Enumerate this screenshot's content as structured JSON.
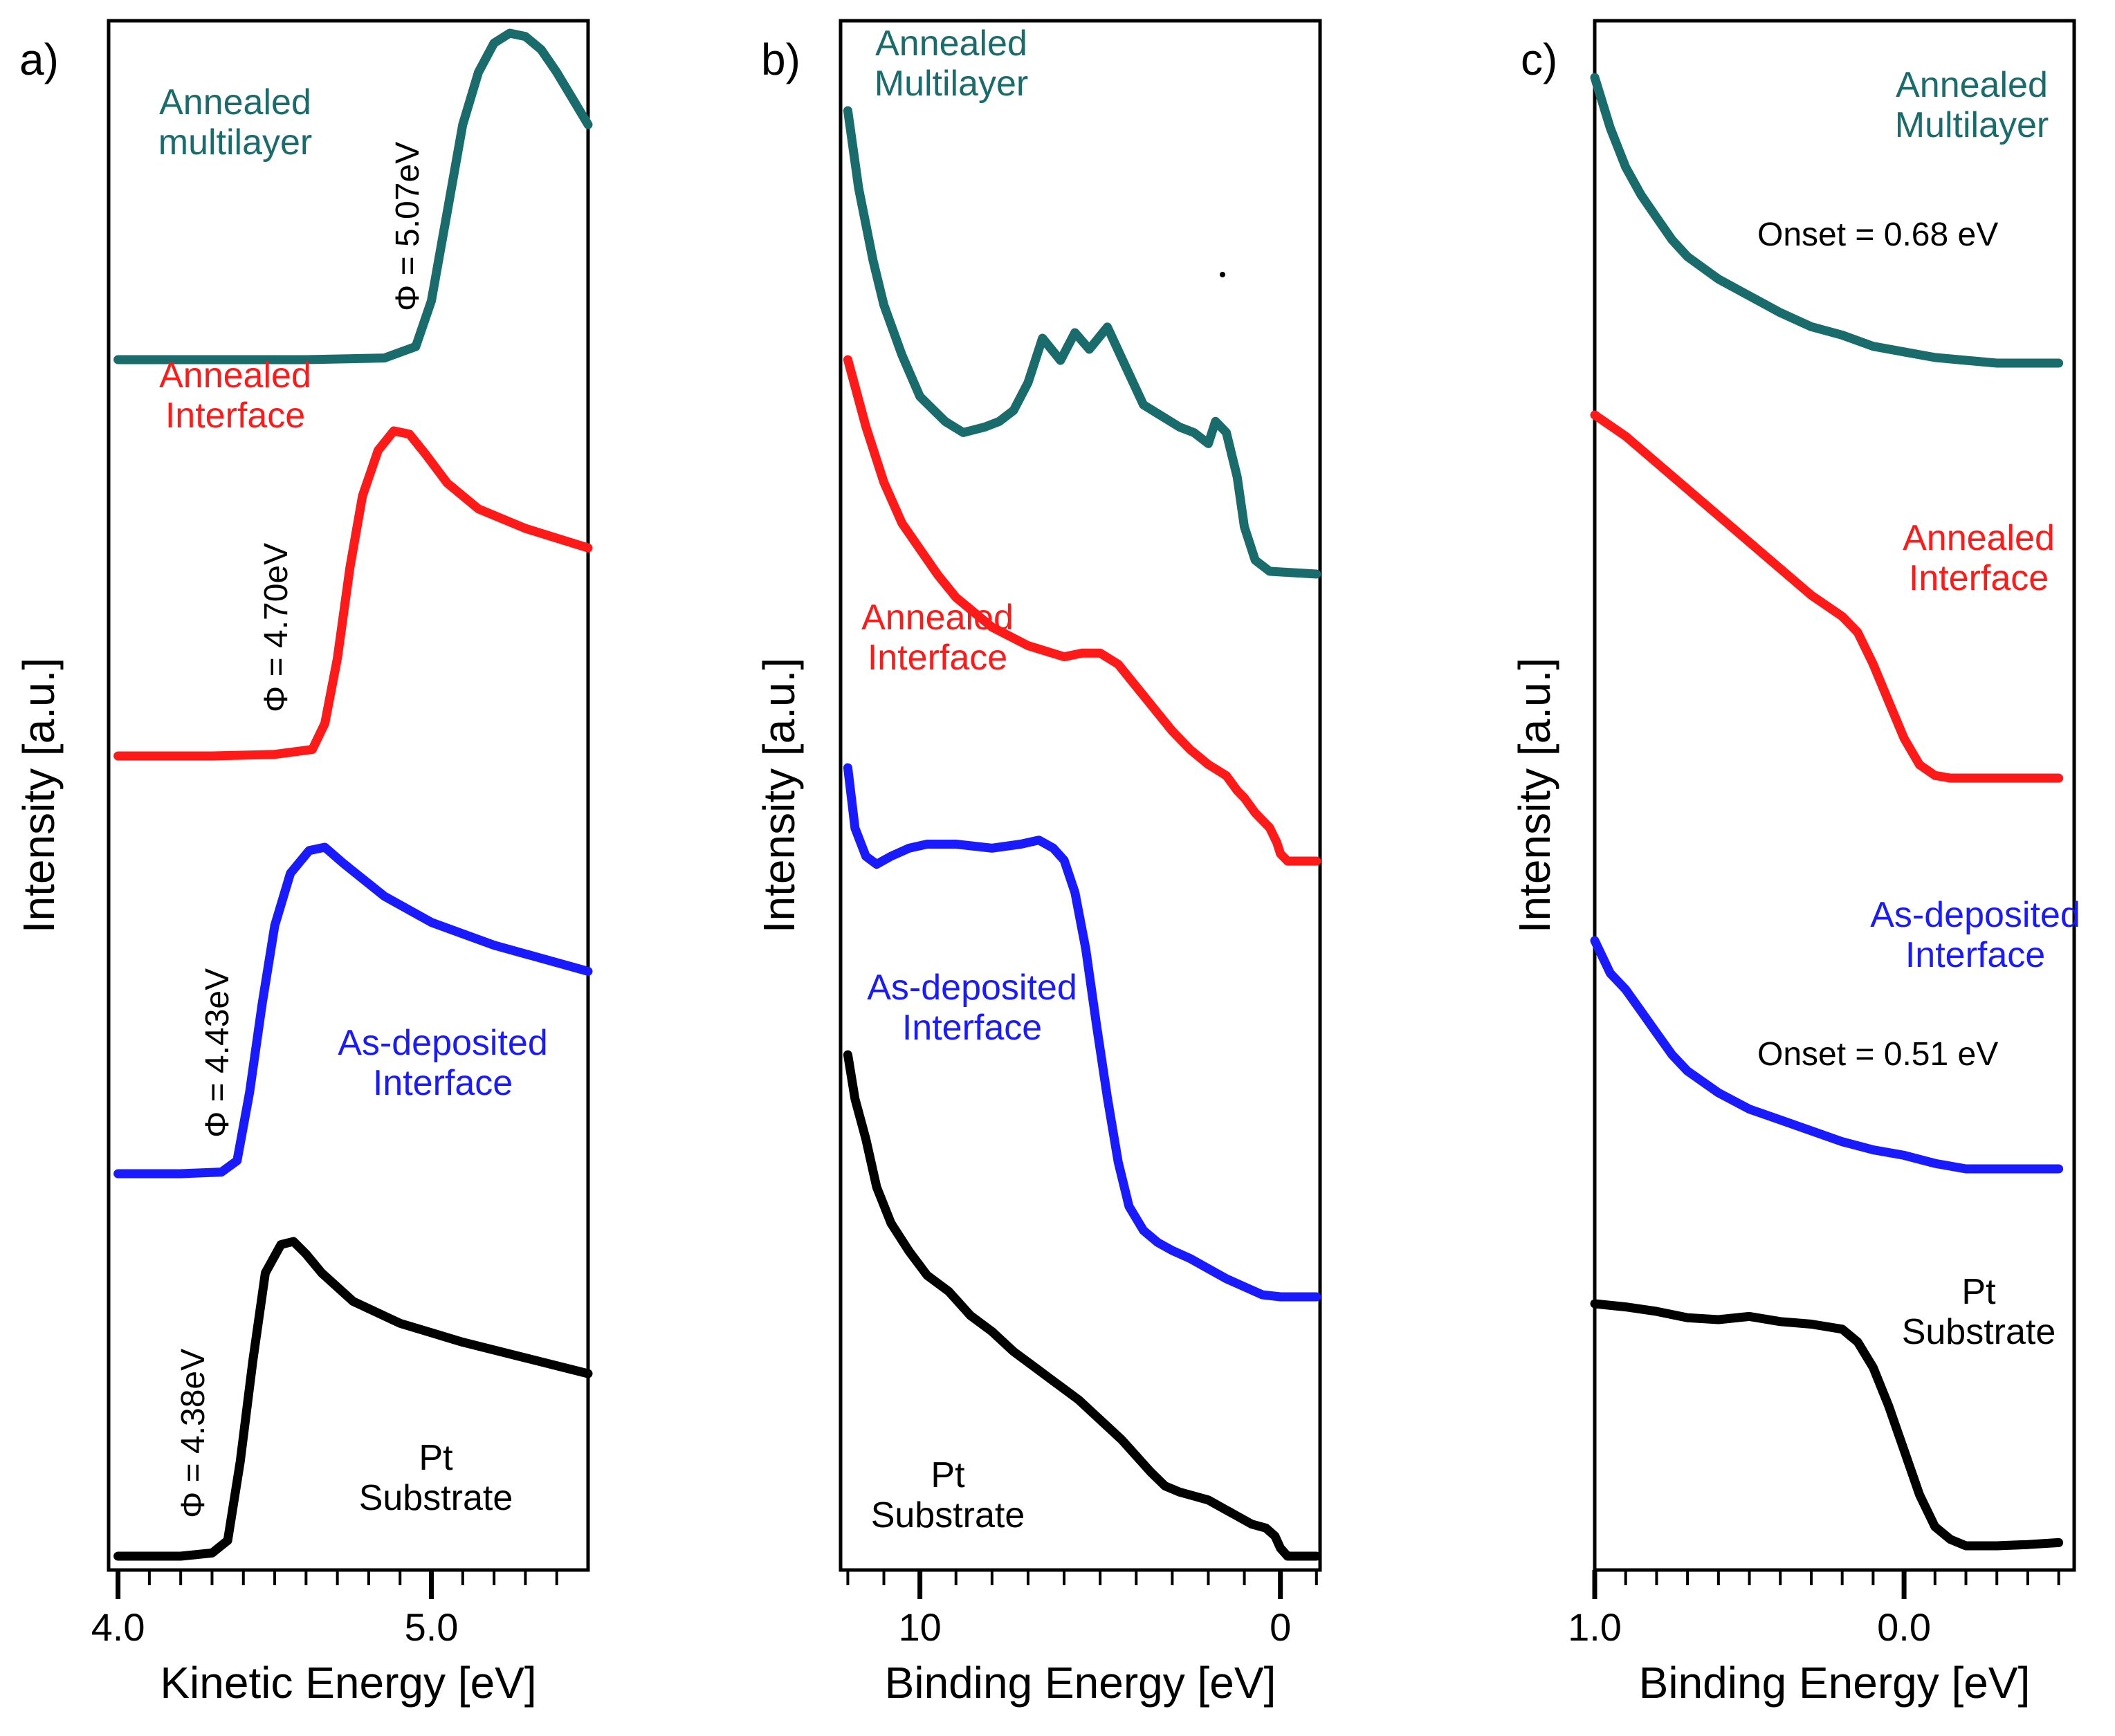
{
  "colors": {
    "teal": "#1a6b6b",
    "red": "#ff1a1a",
    "blue": "#1a1aff",
    "black": "#000000"
  },
  "chart_data": [
    {
      "type": "line",
      "panel_label": "a)",
      "xlabel": "Kinetic Energy [eV]",
      "ylabel": "Intensity [a.u.]",
      "xlim": [
        3.97,
        5.5
      ],
      "xticks": [
        {
          "value": 4.0,
          "label": "4.0"
        },
        {
          "value": 5.0,
          "label": "5.0"
        }
      ],
      "minor_ticks": [
        4.1,
        4.2,
        4.3,
        4.4,
        4.5,
        4.6,
        4.7,
        4.8,
        4.9,
        5.1,
        5.2,
        5.3,
        5.4
      ],
      "series": [
        {
          "name": "Annealed multilayer",
          "color": "teal",
          "offset": 3,
          "x": [
            4.0,
            4.3,
            4.6,
            4.85,
            4.95,
            5.0,
            5.05,
            5.1,
            5.15,
            5.2,
            5.25,
            5.3,
            5.35,
            5.4,
            5.45,
            5.5
          ],
          "y": [
            0,
            0,
            0,
            0.005,
            0.04,
            0.18,
            0.45,
            0.72,
            0.88,
            0.97,
            1.0,
            0.99,
            0.95,
            0.88,
            0.8,
            0.72
          ]
        },
        {
          "name": "Annealed Interface",
          "color": "red",
          "offset": 2,
          "x": [
            4.0,
            4.3,
            4.5,
            4.62,
            4.66,
            4.7,
            4.74,
            4.78,
            4.83,
            4.88,
            4.93,
            4.98,
            5.05,
            5.15,
            5.3,
            5.5
          ],
          "y": [
            0,
            0,
            0.005,
            0.02,
            0.1,
            0.3,
            0.58,
            0.8,
            0.94,
            1.0,
            0.99,
            0.93,
            0.84,
            0.76,
            0.7,
            0.64
          ]
        },
        {
          "name": "As-deposited Interface",
          "color": "blue",
          "offset": 1,
          "x": [
            4.0,
            4.2,
            4.33,
            4.38,
            4.42,
            4.46,
            4.5,
            4.55,
            4.61,
            4.66,
            4.72,
            4.85,
            5.0,
            5.2,
            5.35,
            5.5
          ],
          "y": [
            0,
            0,
            0.005,
            0.04,
            0.25,
            0.52,
            0.76,
            0.92,
            0.99,
            1.0,
            0.95,
            0.85,
            0.77,
            0.7,
            0.66,
            0.62
          ]
        },
        {
          "name": "Pt Substrate",
          "color": "black",
          "offset": 0,
          "x": [
            4.0,
            4.2,
            4.3,
            4.35,
            4.39,
            4.43,
            4.47,
            4.52,
            4.56,
            4.6,
            4.65,
            4.75,
            4.9,
            5.1,
            5.3,
            5.5
          ],
          "y": [
            0,
            0,
            0.01,
            0.05,
            0.3,
            0.62,
            0.9,
            0.99,
            1.0,
            0.96,
            0.9,
            0.81,
            0.74,
            0.68,
            0.63,
            0.58
          ]
        }
      ],
      "annotations": [
        {
          "text": "Φ = 5.07eV",
          "color": "black",
          "rotated": true
        },
        {
          "text": "Φ = 4.70eV",
          "color": "black",
          "rotated": true
        },
        {
          "text": "Φ = 4.43eV",
          "color": "black",
          "rotated": true
        },
        {
          "text": "Φ = 4.38eV",
          "color": "black",
          "rotated": true
        }
      ],
      "labels": [
        {
          "lines": [
            "Annealed",
            "multilayer"
          ],
          "color": "teal"
        },
        {
          "lines": [
            "Annealed",
            "Interface"
          ],
          "color": "red"
        },
        {
          "lines": [
            "As-deposited",
            "Interface"
          ],
          "color": "blue"
        },
        {
          "lines": [
            "Pt",
            "Substrate"
          ],
          "color": "black"
        }
      ]
    },
    {
      "type": "line",
      "panel_label": "b)",
      "xlabel": "Binding Energy [eV]",
      "ylabel": "Intensity [a.u.]",
      "xlim": [
        12.2,
        -1.1
      ],
      "xticks": [
        {
          "value": 10,
          "label": "10"
        },
        {
          "value": 0,
          "label": "0"
        }
      ],
      "minor_ticks": [
        12,
        11,
        9,
        8,
        7,
        6,
        5,
        4,
        3,
        2,
        1,
        -1
      ],
      "series": [
        {
          "name": "Annealed Multilayer",
          "color": "teal",
          "x": [
            12,
            11.7,
            11.3,
            11,
            10.5,
            10,
            9.3,
            8.8,
            8.2,
            7.8,
            7.4,
            7.0,
            6.6,
            6.1,
            5.7,
            5.3,
            4.8,
            4.3,
            3.8,
            3.3,
            2.8,
            2.4,
            2.0,
            1.8,
            1.5,
            1.2,
            1.0,
            0.7,
            0.3,
            -1.0
          ],
          "y": [
            1590,
            1730,
            1860,
            1940,
            2030,
            2105,
            2150,
            2170,
            2160,
            2150,
            2130,
            2080,
            2000,
            2040,
            1990,
            2020,
            1980,
            2050,
            2120,
            2140,
            2160,
            2170,
            2190,
            2150,
            2170,
            2250,
            2340,
            2400,
            2420,
            2425
          ]
        },
        {
          "name": "Annealed Interface",
          "color": "red",
          "x": [
            12,
            11.5,
            11,
            10.5,
            10,
            9.5,
            9,
            8,
            7,
            6,
            5.5,
            5,
            4.5,
            4,
            3.5,
            3,
            2.5,
            2.0,
            1.5,
            1.2,
            1.0,
            0.7,
            0.3,
            0.1,
            0,
            -0.2,
            -1.0
          ],
          "y": [
            2060,
            2240,
            2390,
            2500,
            2570,
            2640,
            2700,
            2780,
            2830,
            2860,
            2850,
            2850,
            2880,
            2940,
            3000,
            3060,
            3110,
            3150,
            3180,
            3220,
            3240,
            3280,
            3320,
            3360,
            3390,
            3410,
            3410
          ]
        },
        {
          "name": "As-deposited Interface",
          "color": "blue",
          "x": [
            12,
            11.8,
            11.5,
            11.2,
            10.8,
            10.3,
            9.8,
            9.0,
            8.0,
            7.2,
            6.7,
            6.3,
            6.0,
            5.7,
            5.4,
            5.1,
            4.8,
            4.5,
            4.2,
            3.8,
            3.4,
            3.0,
            2.5,
            2.0,
            1.5,
            1.0,
            0.5,
            0,
            -1.0
          ],
          "y": [
            1500,
            1650,
            1720,
            1740,
            1720,
            1700,
            1690,
            1690,
            1700,
            1690,
            1680,
            1700,
            1730,
            1810,
            1950,
            2140,
            2320,
            2480,
            2590,
            2650,
            2680,
            2700,
            2720,
            2745,
            2770,
            2790,
            2810,
            2815,
            2815
          ]
        },
        {
          "name": "Pt Substrate",
          "color": "black",
          "x": [
            12,
            11.8,
            11.5,
            11.2,
            10.8,
            10.3,
            9.8,
            9.2,
            8.6,
            8,
            7.4,
            6.8,
            6.2,
            5.6,
            5.0,
            4.4,
            4.0,
            3.6,
            3.2,
            2.8,
            2.4,
            2.0,
            1.6,
            1.2,
            0.8,
            0.4,
            0.15,
            0,
            -0.2,
            -1.0
          ],
          "y": [
            1590,
            1700,
            1800,
            1920,
            2010,
            2080,
            2140,
            2180,
            2240,
            2280,
            2330,
            2370,
            2410,
            2450,
            2500,
            2550,
            2590,
            2630,
            2665,
            2680,
            2690,
            2700,
            2720,
            2740,
            2760,
            2770,
            2790,
            2820,
            2840,
            2840
          ]
        }
      ],
      "labels": [
        {
          "lines": [
            "Annealed",
            "Multilayer"
          ],
          "color": "teal"
        },
        {
          "lines": [
            "Annealed",
            "Interface"
          ],
          "color": "red"
        },
        {
          "lines": [
            "As-deposited",
            "Interface"
          ],
          "color": "blue"
        },
        {
          "lines": [
            "Pt",
            "Substrate"
          ],
          "color": "black"
        }
      ]
    },
    {
      "type": "line",
      "panel_label": "c)",
      "xlabel": "Binding Energy [eV]",
      "ylabel": "Intensity [a.u.]",
      "xlim": [
        1.0,
        -0.55
      ],
      "xticks": [
        {
          "value": 1.0,
          "label": "1.0"
        },
        {
          "value": 0.0,
          "label": "0.0"
        }
      ],
      "minor_ticks": [
        0.9,
        0.8,
        0.7,
        0.6,
        0.5,
        0.4,
        0.3,
        0.2,
        0.1,
        -0.1,
        -0.2,
        -0.3,
        -0.4,
        -0.5
      ],
      "series": [
        {
          "name": "Annealed Multilayer",
          "color": "teal",
          "x": [
            1.0,
            0.95,
            0.9,
            0.85,
            0.8,
            0.75,
            0.7,
            0.6,
            0.5,
            0.4,
            0.3,
            0.2,
            0.1,
            0.0,
            -0.1,
            -0.2,
            -0.3,
            -0.4,
            -0.5
          ],
          "y": [
            2000,
            2090,
            2160,
            2210,
            2250,
            2290,
            2320,
            2360,
            2390,
            2420,
            2445,
            2460,
            2480,
            2490,
            2500,
            2505,
            2510,
            2510,
            2510
          ]
        },
        {
          "name": "Annealed Interface",
          "color": "red",
          "x": [
            1.0,
            0.9,
            0.8,
            0.7,
            0.6,
            0.5,
            0.4,
            0.3,
            0.2,
            0.15,
            0.1,
            0.05,
            0.0,
            -0.05,
            -0.1,
            -0.15,
            -0.3,
            -0.5
          ],
          "y": [
            2000,
            2040,
            2090,
            2140,
            2190,
            2240,
            2290,
            2340,
            2380,
            2410,
            2470,
            2540,
            2610,
            2660,
            2680,
            2685,
            2685,
            2685
          ]
        },
        {
          "name": "As-deposited Interface",
          "color": "blue",
          "x": [
            1.0,
            0.95,
            0.9,
            0.85,
            0.8,
            0.75,
            0.7,
            0.6,
            0.5,
            0.4,
            0.3,
            0.2,
            0.1,
            0.0,
            -0.1,
            -0.2,
            -0.3,
            -0.4,
            -0.5
          ],
          "y": [
            2000,
            2060,
            2090,
            2130,
            2170,
            2210,
            2240,
            2280,
            2310,
            2330,
            2350,
            2370,
            2385,
            2395,
            2410,
            2420,
            2420,
            2420,
            2420
          ]
        },
        {
          "name": "Pt Substrate",
          "color": "black",
          "x": [
            1.0,
            0.9,
            0.8,
            0.7,
            0.6,
            0.5,
            0.4,
            0.3,
            0.2,
            0.15,
            0.1,
            0.05,
            0.0,
            -0.05,
            -0.1,
            -0.15,
            -0.2,
            -0.3,
            -0.4,
            -0.5
          ],
          "y": [
            2000,
            2005,
            2012,
            2022,
            2025,
            2020,
            2028,
            2032,
            2040,
            2060,
            2100,
            2160,
            2230,
            2300,
            2350,
            2370,
            2380,
            2380,
            2378,
            2375
          ]
        }
      ],
      "annotations": [
        {
          "text": "Onset = 0.68 eV",
          "color": "black",
          "rotated": false
        },
        {
          "text": "Onset = 0.51 eV",
          "color": "black",
          "rotated": false
        }
      ],
      "labels": [
        {
          "lines": [
            "Annealed",
            "Multilayer"
          ],
          "color": "teal"
        },
        {
          "lines": [
            "Annealed",
            "Interface"
          ],
          "color": "red"
        },
        {
          "lines": [
            "As-deposited",
            "Interface"
          ],
          "color": "blue"
        },
        {
          "lines": [
            "Pt",
            "Substrate"
          ],
          "color": "black"
        }
      ]
    }
  ]
}
